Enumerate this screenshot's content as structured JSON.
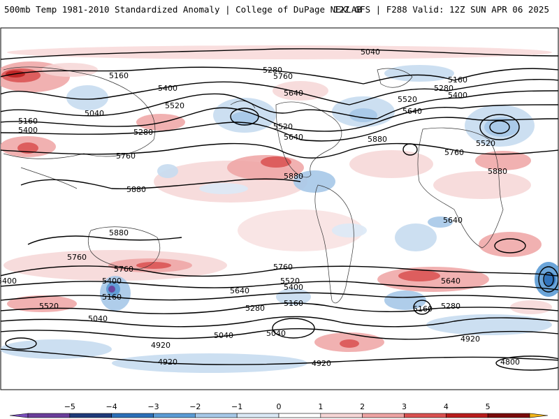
{
  "header": {
    "title": "500mb Temp 1981-2010 Standardized Anomaly | College of DuPage NEXLAB",
    "run_info": "12Z GFS | F288 Valid: 12Z SUN APR 06 2025"
  },
  "contour_labels": [
    "5040",
    "5160",
    "5280",
    "5400",
    "5520",
    "5640",
    "5760",
    "5880",
    "5040",
    "5160",
    "5280",
    "5400",
    "5520",
    "5640",
    "5760",
    "5880",
    "5160",
    "5280",
    "5400",
    "5520",
    "5640",
    "5760",
    "5880",
    "5880",
    "5880",
    "5760",
    "5640",
    "5520",
    "5400",
    "5160",
    "5760",
    "5640",
    "5520",
    "5400",
    "5280",
    "5160",
    "5040",
    "5400",
    "5280",
    "5160",
    "5520",
    "5640",
    "5760",
    "4920",
    "4920",
    "4920",
    "4800",
    "5040",
    "5040",
    "4920"
  ],
  "colorbar": {
    "ticks": [
      "−5",
      "−4",
      "−3",
      "−2",
      "−1",
      "0",
      "1",
      "2",
      "3",
      "4",
      "5"
    ],
    "colors": [
      "#6a3d9a",
      "#1f3a7a",
      "#2c6fb8",
      "#5b9bd5",
      "#a6c8e8",
      "#dbe9f6",
      "#ffffff",
      "#f6d6d6",
      "#eea3a3",
      "#d95050",
      "#b81c1c",
      "#7a0a0a"
    ],
    "overflow_low_color": "#7a4dbb",
    "overflow_high_color": "#f2b418"
  },
  "colors": {
    "warm_anomaly": "#f4c2c2",
    "cold_anomaly": "#c6dbf0",
    "contour_line": "#000000",
    "coastline": "#333333"
  }
}
